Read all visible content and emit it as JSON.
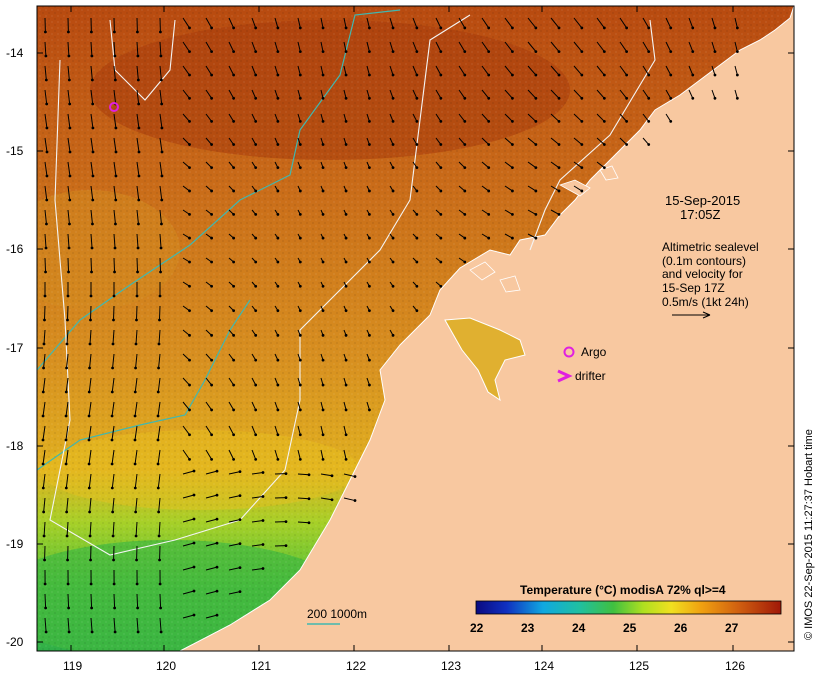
{
  "map": {
    "date": "15-Sep-2015",
    "time": "17:05Z",
    "altimetry_lines": [
      "Altimetric sealevel",
      "(0.1m contours)",
      "and velocity for",
      "15-Sep 17Z",
      "0.5m/s (1kt 24h)"
    ],
    "legend": {
      "argo": "Argo",
      "drifter": "drifter"
    },
    "isobath_label": "200  1000m",
    "credit": "© IMOS 22-Sep-2015 11:27:37 Hobart time",
    "lat_ticks": [
      "-14",
      "-15",
      "-16",
      "-17",
      "-18",
      "-19",
      "-20"
    ],
    "lon_ticks": [
      "119",
      "120",
      "121",
      "122",
      "123",
      "124",
      "125",
      "126"
    ],
    "colorbar": {
      "title": "Temperature (°C) modisA 72% ql>=4",
      "ticks": [
        "22",
        "23",
        "24",
        "25",
        "26",
        "27"
      ],
      "range": [
        21.75,
        27.5
      ]
    },
    "colors": {
      "land": "#f8c8a0",
      "argo": "#e020e0",
      "drifter": "#e020e0",
      "isobath": "#40b8b0",
      "contour": "#f8f8f8"
    }
  }
}
